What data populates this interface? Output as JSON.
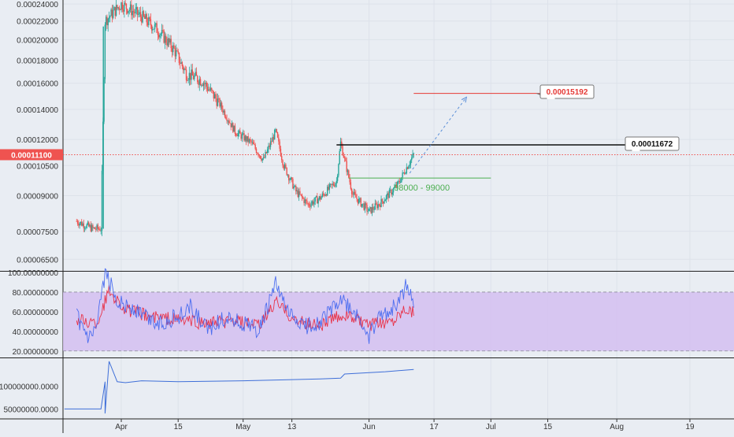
{
  "theme": {
    "background": "#e9edf3",
    "grid": "#dde2ea",
    "axis_text": "#333333",
    "candle_up": "#26a69a",
    "candle_down": "#ef5350",
    "price_line": "#ef5350",
    "rsi_band_fill": "#d4bef0",
    "rsi_blue": "#4d6ef0",
    "rsi_red": "#e8334a",
    "obv_line": "#3f6fd8",
    "target_line": "#e53935",
    "resistance_line": "#111111",
    "support_line": "#4caf50",
    "projection_line": "#5b8fd8"
  },
  "chart_data": [
    {
      "type": "candlestick",
      "panel": "price",
      "y_tick_labels": [
        "0.00024000",
        "0.00022000",
        "0.00020000",
        "0.00018000",
        "0.00016000",
        "0.00014000",
        "0.00012000",
        "0.00010500",
        "0.00009000",
        "0.00007500",
        "0.00006500"
      ],
      "y_ticks": [
        0.00024,
        0.00022,
        0.0002,
        0.00018,
        0.00016,
        0.00014,
        0.00012,
        0.000105,
        9e-05,
        7.5e-05,
        6.5e-05
      ],
      "ylim": [
        6.15e-05,
        0.000245
      ],
      "log_scale": true,
      "current_price": {
        "label": "0.00011100",
        "value": 0.000111
      },
      "annotations": [
        {
          "label": "0.00015192",
          "value": 0.00015192,
          "color": "#e53935"
        },
        {
          "label": "0.00011672",
          "value": 0.00011672,
          "color": "#111111"
        }
      ],
      "support_zone": {
        "label": "98000 - 99000",
        "value": 9.85e-05
      },
      "path_points": [
        [
          "2023-03-21",
          7.9e-05
        ],
        [
          "2023-03-25",
          7.6e-05
        ],
        [
          "2023-03-27",
          7.6e-05
        ],
        [
          "2023-03-28",
          0.00022
        ],
        [
          "2023-03-30",
          0.00023
        ],
        [
          "2023-04-01",
          0.00024
        ],
        [
          "2023-04-06",
          0.000225
        ],
        [
          "2023-04-10",
          0.00021
        ],
        [
          "2023-04-14",
          0.00019
        ],
        [
          "2023-04-17",
          0.000168
        ],
        [
          "2023-04-21",
          0.000162
        ],
        [
          "2023-04-25",
          0.000145
        ],
        [
          "2023-04-29",
          0.000125
        ],
        [
          "2023-05-03",
          0.000118
        ],
        [
          "2023-05-06",
          0.000108
        ],
        [
          "2023-05-09",
          0.000125
        ],
        [
          "2023-05-11",
          0.000105
        ],
        [
          "2023-05-14",
          9.2e-05
        ],
        [
          "2023-05-17",
          8.6e-05
        ],
        [
          "2023-05-20",
          8.9e-05
        ],
        [
          "2023-05-24",
          9.7e-05
        ],
        [
          "2023-05-25",
          0.000118
        ],
        [
          "2023-05-28",
          9.05e-05
        ],
        [
          "2023-06-01",
          8.3e-05
        ],
        [
          "2023-06-04",
          8.7e-05
        ],
        [
          "2023-06-08",
          9.5e-05
        ],
        [
          "2023-06-10",
          0.000103
        ],
        [
          "2023-06-12",
          0.000111
        ]
      ]
    },
    {
      "type": "line",
      "panel": "rsi",
      "y_tick_labels": [
        "100.00000000",
        "80.00000000",
        "60.00000000",
        "40.00000000",
        "20.00000000"
      ],
      "y_ticks": [
        100,
        80,
        60,
        40,
        20
      ],
      "ylim": [
        15,
        100
      ],
      "band": [
        20,
        80
      ],
      "series": [
        {
          "color": "#4d6ef0",
          "points": [
            [
              "2023-03-21",
              55
            ],
            [
              "2023-03-24",
              30
            ],
            [
              "2023-03-26",
              42
            ],
            [
              "2023-03-28",
              100
            ],
            [
              "2023-03-31",
              72
            ],
            [
              "2023-04-05",
              60
            ],
            [
              "2023-04-10",
              48
            ],
            [
              "2023-04-15",
              55
            ],
            [
              "2023-04-18",
              65
            ],
            [
              "2023-04-22",
              42
            ],
            [
              "2023-04-27",
              55
            ],
            [
              "2023-05-01",
              48
            ],
            [
              "2023-05-05",
              40
            ],
            [
              "2023-05-09",
              88
            ],
            [
              "2023-05-12",
              58
            ],
            [
              "2023-05-16",
              45
            ],
            [
              "2023-05-20",
              50
            ],
            [
              "2023-05-25",
              72
            ],
            [
              "2023-05-29",
              55
            ],
            [
              "2023-06-01",
              35
            ],
            [
              "2023-06-04",
              55
            ],
            [
              "2023-06-08",
              68
            ],
            [
              "2023-06-10",
              85
            ],
            [
              "2023-06-12",
              72
            ]
          ]
        },
        {
          "color": "#e8334a",
          "points": [
            [
              "2023-03-21",
              52
            ],
            [
              "2023-03-26",
              48
            ],
            [
              "2023-03-29",
              82
            ],
            [
              "2023-04-02",
              62
            ],
            [
              "2023-04-08",
              55
            ],
            [
              "2023-04-15",
              52
            ],
            [
              "2023-04-22",
              48
            ],
            [
              "2023-04-29",
              50
            ],
            [
              "2023-05-05",
              45
            ],
            [
              "2023-05-09",
              70
            ],
            [
              "2023-05-14",
              50
            ],
            [
              "2023-05-20",
              46
            ],
            [
              "2023-05-26",
              58
            ],
            [
              "2023-06-01",
              45
            ],
            [
              "2023-06-07",
              52
            ],
            [
              "2023-06-10",
              65
            ],
            [
              "2023-06-12",
              60
            ]
          ]
        }
      ]
    },
    {
      "type": "line",
      "panel": "obv",
      "y_tick_labels": [
        "100000000.0000",
        "50000000.0000"
      ],
      "y_ticks": [
        100000000,
        50000000
      ],
      "ylim": [
        35000000,
        160000000
      ],
      "series": [
        {
          "color": "#3f6fd8",
          "points": [
            [
              "2023-03-18",
              50000000
            ],
            [
              "2023-03-27",
              50000000
            ],
            [
              "2023-03-28",
              110000000
            ],
            [
              "2023-03-28",
              40000000
            ],
            [
              "2023-03-29",
              155000000
            ],
            [
              "2023-03-31",
              110000000
            ],
            [
              "2023-04-02",
              108000000
            ],
            [
              "2023-04-06",
              112000000
            ],
            [
              "2023-04-15",
              110000000
            ],
            [
              "2023-05-01",
              112000000
            ],
            [
              "2023-05-20",
              116000000
            ],
            [
              "2023-05-25",
              118000000
            ],
            [
              "2023-05-26",
              127000000
            ],
            [
              "2023-06-05",
              132000000
            ],
            [
              "2023-06-12",
              137000000
            ]
          ]
        }
      ]
    }
  ],
  "x_axis": {
    "ticks": [
      {
        "label": "Apr",
        "date": "2023-04-01"
      },
      {
        "label": "15",
        "date": "2023-04-15"
      },
      {
        "label": "May",
        "date": "2023-05-01"
      },
      {
        "label": "13",
        "date": "2023-05-13"
      },
      {
        "label": "Jun",
        "date": "2023-06-01"
      },
      {
        "label": "17",
        "date": "2023-06-17"
      },
      {
        "label": "Jul",
        "date": "2023-07-01"
      },
      {
        "label": "15",
        "date": "2023-07-15"
      },
      {
        "label": "Aug",
        "date": "2023-08-01"
      },
      {
        "label": "19",
        "date": "2023-08-19"
      }
    ]
  }
}
